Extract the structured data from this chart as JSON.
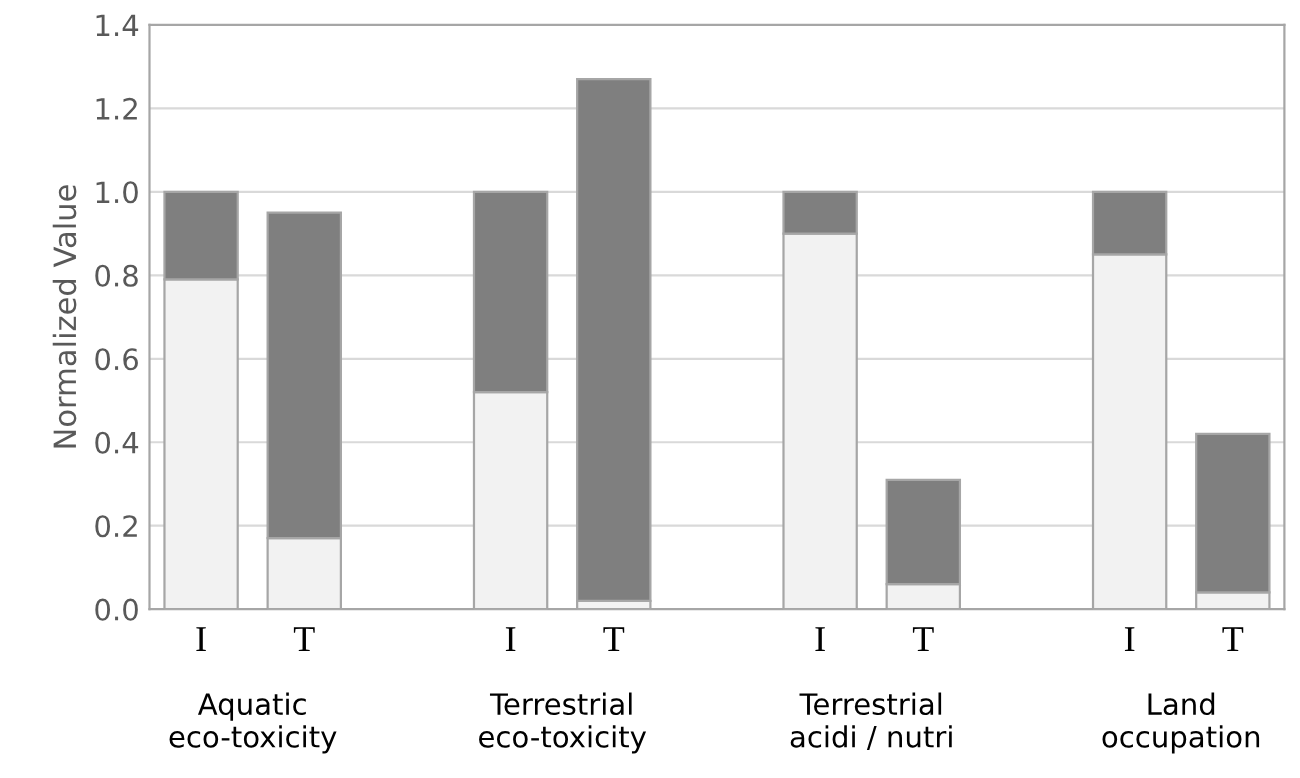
{
  "chart_data": {
    "type": "bar",
    "stacked": true,
    "ylabel": "Normalized Value",
    "categories": [
      "I",
      "T",
      null,
      "I",
      "T",
      null,
      "I",
      "T",
      null,
      "I",
      "T"
    ],
    "series": [
      {
        "color": "#f2f2f2",
        "values": [
          0.79,
          0.17,
          null,
          0.52,
          0.02,
          null,
          0.9,
          0.06,
          null,
          0.85,
          0.04
        ]
      },
      {
        "color": "#7f7f7f",
        "values": [
          0.21,
          0.78,
          null,
          0.48,
          1.25,
          null,
          0.1,
          0.25,
          null,
          0.15,
          0.38
        ]
      }
    ],
    "ylim": [
      0,
      1.4
    ],
    "yticks": [
      {
        "value": 0,
        "label": "0.0"
      },
      0.2,
      0.4,
      0.6,
      0.8,
      {
        "value": 1,
        "label": "1.0"
      },
      1.2,
      1.4
    ],
    "grid": "y",
    "annotations": [
      "Aquatic\neco-toxicity",
      "Terrestrial\neco-toxicity",
      "Terrestrial\nacidi / nutri",
      "Land\noccupation"
    ]
  }
}
